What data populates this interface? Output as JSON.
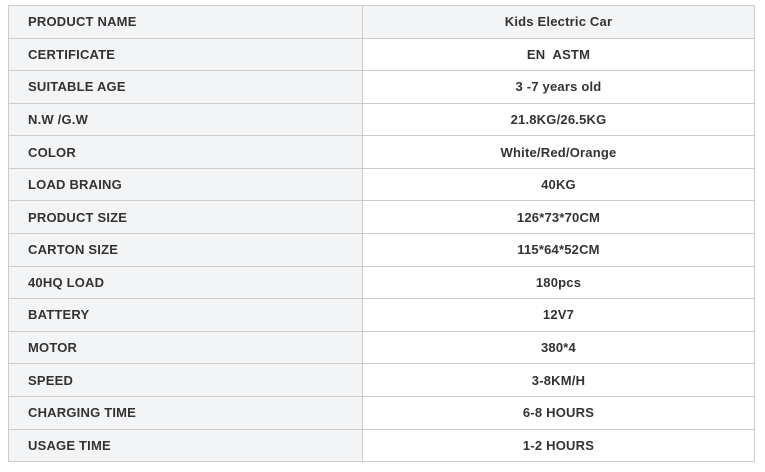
{
  "table": {
    "border_color": "#cccccc",
    "label_bg": "#f3f4f6",
    "value_bg": "#ffffff",
    "text_color": "#333333",
    "rows": [
      {
        "label": "PRODUCT NAME",
        "value": "Kids Electric Car"
      },
      {
        "label": "CERTIFICATE",
        "value": "EN  ASTM"
      },
      {
        "label": "SUITABLE AGE",
        "value": "3 -7 years old"
      },
      {
        "label": "N.W /G.W",
        "value": "21.8KG/26.5KG"
      },
      {
        "label": "COLOR",
        "value": "White/Red/Orange"
      },
      {
        "label": "LOAD BRAING",
        "value": "40KG"
      },
      {
        "label": "PRODUCT SIZE",
        "value": "126*73*70CM"
      },
      {
        "label": "CARTON SIZE",
        "value": "115*64*52CM"
      },
      {
        "label": "40HQ LOAD",
        "value": "180pcs"
      },
      {
        "label": "BATTERY",
        "value": "12V7"
      },
      {
        "label": "MOTOR",
        "value": "380*4"
      },
      {
        "label": "SPEED",
        "value": "3-8KM/H"
      },
      {
        "label": "CHARGING TIME",
        "value": "6-8 HOURS"
      },
      {
        "label": "USAGE TIME",
        "value": "1-2 HOURS"
      }
    ]
  }
}
